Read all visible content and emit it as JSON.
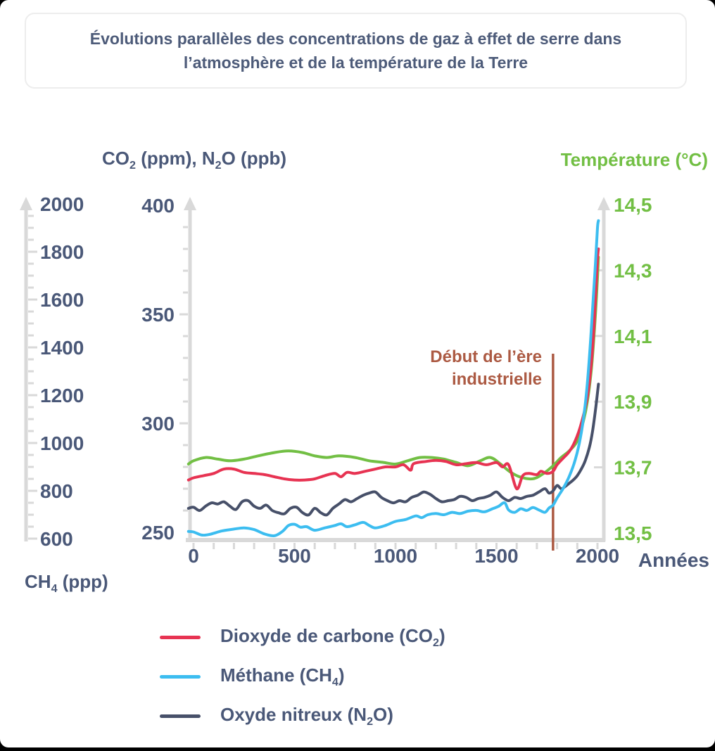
{
  "title": "Évolutions parallèles des concentrations de gaz à effet de serre dans l’atmosphère et de la température de la Terre",
  "colors": {
    "slate_text": "#4a5878",
    "axis_gray": "#d9d9d9",
    "annotation_brown": "#ac5a43",
    "temperature_green": "#72bf44",
    "co2_red": "#e73352",
    "ch4_blue": "#3cbdf0",
    "n2o_navy": "#475069"
  },
  "chart_data": {
    "type": "line",
    "title": "Évolutions parallèles des concentrations de gaz à effet de serre dans l’atmosphère et de la température de la Terre",
    "x_axis": {
      "label": "Années",
      "range": [
        0,
        2000
      ],
      "ticks": [
        0,
        500,
        1000,
        1500,
        2000
      ],
      "minor_step": 100
    },
    "axes": {
      "co2_n2o": {
        "title_segments": [
          {
            "t": "CO"
          },
          {
            "t": "2",
            "sub": true
          },
          {
            "t": " (ppm), N"
          },
          {
            "t": "2",
            "sub": true
          },
          {
            "t": "O (ppb)"
          }
        ],
        "range": [
          250,
          400
        ],
        "major_ticks": [
          250,
          300,
          350,
          400
        ],
        "minor_step": 10
      },
      "ch4": {
        "title_segments": [
          {
            "t": "CH"
          },
          {
            "t": "4",
            "sub": true
          },
          {
            "t": " (ppp)"
          }
        ],
        "range": [
          600,
          2000
        ],
        "major_ticks": [
          600,
          800,
          1000,
          1200,
          1400,
          1600,
          1800,
          2000
        ],
        "minor_step": 50
      },
      "temperature": {
        "title": "Température (°C)",
        "range": [
          13.5,
          14.5
        ],
        "ticks": [
          {
            "v": 13.5,
            "label": "13,5"
          },
          {
            "v": 13.7,
            "label": "13,7"
          },
          {
            "v": 13.9,
            "label": "13,9"
          },
          {
            "v": 14.1,
            "label": "14,1"
          },
          {
            "v": 14.3,
            "label": "14,3"
          },
          {
            "v": 14.5,
            "label": "14,5"
          }
        ],
        "tick_mark_values": [
          13.7,
          13.9,
          14.1,
          14.3
        ]
      }
    },
    "annotation": {
      "line1": "Début de l’ère",
      "line2": "industrielle",
      "year": 1780,
      "color": "#ac5a43"
    },
    "grid": false,
    "legend_position": "bottom-left",
    "series": [
      {
        "id": "temperature",
        "axis": "temperature",
        "color": "#72bf44",
        "in_legend": false,
        "name": "Température",
        "points": [
          [
            -25,
            13.71
          ],
          [
            0,
            13.72
          ],
          [
            60,
            13.73
          ],
          [
            120,
            13.725
          ],
          [
            180,
            13.72
          ],
          [
            250,
            13.725
          ],
          [
            320,
            13.735
          ],
          [
            400,
            13.745
          ],
          [
            470,
            13.75
          ],
          [
            540,
            13.745
          ],
          [
            600,
            13.735
          ],
          [
            660,
            13.73
          ],
          [
            720,
            13.735
          ],
          [
            800,
            13.73
          ],
          [
            870,
            13.72
          ],
          [
            940,
            13.715
          ],
          [
            1000,
            13.71
          ],
          [
            1060,
            13.72
          ],
          [
            1120,
            13.73
          ],
          [
            1180,
            13.73
          ],
          [
            1240,
            13.725
          ],
          [
            1300,
            13.715
          ],
          [
            1360,
            13.705
          ],
          [
            1420,
            13.72
          ],
          [
            1470,
            13.73
          ],
          [
            1520,
            13.71
          ],
          [
            1570,
            13.685
          ],
          [
            1620,
            13.67
          ],
          [
            1680,
            13.665
          ],
          [
            1730,
            13.68
          ],
          [
            1780,
            13.705
          ],
          [
            1820,
            13.73
          ],
          [
            1860,
            13.75
          ],
          [
            1900,
            13.78
          ],
          [
            1930,
            13.84
          ],
          [
            1950,
            13.9
          ],
          [
            1970,
            14.0
          ],
          [
            1985,
            14.12
          ],
          [
            1995,
            14.22
          ],
          [
            2005,
            14.34
          ]
        ]
      },
      {
        "id": "n2o",
        "axis": "co2_n2o",
        "color": "#475069",
        "in_legend": true,
        "name_segments": [
          {
            "t": "Oxyde nitreux (N"
          },
          {
            "t": "2",
            "sub": true
          },
          {
            "t": "O)"
          }
        ],
        "points": [
          [
            -25,
            261
          ],
          [
            0,
            261.5
          ],
          [
            30,
            260
          ],
          [
            60,
            262
          ],
          [
            90,
            263.5
          ],
          [
            120,
            263
          ],
          [
            150,
            264
          ],
          [
            180,
            262
          ],
          [
            210,
            260.5
          ],
          [
            240,
            264
          ],
          [
            270,
            264.5
          ],
          [
            300,
            262
          ],
          [
            330,
            261
          ],
          [
            360,
            262.5
          ],
          [
            390,
            260
          ],
          [
            420,
            259
          ],
          [
            450,
            258.5
          ],
          [
            480,
            261
          ],
          [
            510,
            261.5
          ],
          [
            540,
            259
          ],
          [
            570,
            258
          ],
          [
            600,
            261
          ],
          [
            630,
            259
          ],
          [
            660,
            258
          ],
          [
            690,
            261
          ],
          [
            720,
            263
          ],
          [
            750,
            265
          ],
          [
            780,
            264
          ],
          [
            810,
            265.5
          ],
          [
            840,
            267
          ],
          [
            870,
            268
          ],
          [
            900,
            268.5
          ],
          [
            930,
            266
          ],
          [
            960,
            264.5
          ],
          [
            990,
            263.5
          ],
          [
            1020,
            264.5
          ],
          [
            1050,
            264
          ],
          [
            1080,
            266
          ],
          [
            1110,
            267
          ],
          [
            1140,
            268.5
          ],
          [
            1170,
            267.5
          ],
          [
            1200,
            265.5
          ],
          [
            1230,
            264
          ],
          [
            1260,
            264.5
          ],
          [
            1290,
            265
          ],
          [
            1320,
            266.5
          ],
          [
            1350,
            266
          ],
          [
            1380,
            264.5
          ],
          [
            1410,
            265.5
          ],
          [
            1440,
            266
          ],
          [
            1470,
            267
          ],
          [
            1500,
            268.5
          ],
          [
            1530,
            266
          ],
          [
            1560,
            264.5
          ],
          [
            1590,
            266
          ],
          [
            1620,
            265.5
          ],
          [
            1650,
            266.5
          ],
          [
            1680,
            267
          ],
          [
            1710,
            268.5
          ],
          [
            1740,
            270
          ],
          [
            1760,
            268
          ],
          [
            1780,
            269
          ],
          [
            1800,
            271.5
          ],
          [
            1820,
            270
          ],
          [
            1840,
            271
          ],
          [
            1860,
            272.5
          ],
          [
            1880,
            274
          ],
          [
            1900,
            276
          ],
          [
            1920,
            279
          ],
          [
            1940,
            283
          ],
          [
            1960,
            289
          ],
          [
            1975,
            296
          ],
          [
            1990,
            306
          ],
          [
            2000,
            314
          ],
          [
            2005,
            318
          ]
        ]
      },
      {
        "id": "co2",
        "axis": "co2_n2o",
        "color": "#e73352",
        "in_legend": true,
        "name_segments": [
          {
            "t": "Dioxyde de carbone (CO"
          },
          {
            "t": "2",
            "sub": true
          },
          {
            "t": ")"
          }
        ],
        "points": [
          [
            -25,
            274
          ],
          [
            0,
            275
          ],
          [
            50,
            276
          ],
          [
            100,
            277
          ],
          [
            150,
            279
          ],
          [
            200,
            279
          ],
          [
            250,
            277.5
          ],
          [
            300,
            277
          ],
          [
            350,
            276.5
          ],
          [
            400,
            275.5
          ],
          [
            450,
            274.5
          ],
          [
            500,
            274
          ],
          [
            550,
            274
          ],
          [
            600,
            274.5
          ],
          [
            650,
            276
          ],
          [
            700,
            277
          ],
          [
            730,
            275.5
          ],
          [
            760,
            277.5
          ],
          [
            800,
            277
          ],
          [
            850,
            278
          ],
          [
            900,
            279
          ],
          [
            950,
            280
          ],
          [
            1000,
            280
          ],
          [
            1040,
            281
          ],
          [
            1075,
            278.5
          ],
          [
            1090,
            281.5
          ],
          [
            1150,
            282.5
          ],
          [
            1200,
            283
          ],
          [
            1250,
            282.5
          ],
          [
            1300,
            281
          ],
          [
            1350,
            281.5
          ],
          [
            1400,
            282
          ],
          [
            1450,
            281
          ],
          [
            1500,
            282
          ],
          [
            1530,
            280
          ],
          [
            1560,
            281
          ],
          [
            1600,
            270
          ],
          [
            1630,
            276
          ],
          [
            1660,
            277
          ],
          [
            1700,
            276.5
          ],
          [
            1720,
            278
          ],
          [
            1750,
            277
          ],
          [
            1780,
            278
          ],
          [
            1800,
            281
          ],
          [
            1830,
            284
          ],
          [
            1860,
            287
          ],
          [
            1890,
            292
          ],
          [
            1920,
            300
          ],
          [
            1950,
            312
          ],
          [
            1970,
            328
          ],
          [
            1985,
            348
          ],
          [
            2000,
            375
          ],
          [
            2005,
            380
          ]
        ]
      },
      {
        "id": "ch4",
        "axis": "ch4",
        "color": "#3cbdf0",
        "in_legend": true,
        "name_segments": [
          {
            "t": "Méthane (CH"
          },
          {
            "t": "4",
            "sub": true
          },
          {
            "t": ")"
          }
        ],
        "points": [
          [
            -25,
            630
          ],
          [
            0,
            628
          ],
          [
            40,
            615
          ],
          [
            80,
            618
          ],
          [
            140,
            632
          ],
          [
            200,
            640
          ],
          [
            250,
            645
          ],
          [
            300,
            638
          ],
          [
            350,
            620
          ],
          [
            400,
            612
          ],
          [
            440,
            630
          ],
          [
            470,
            655
          ],
          [
            500,
            660
          ],
          [
            530,
            648
          ],
          [
            560,
            650
          ],
          [
            600,
            635
          ],
          [
            650,
            645
          ],
          [
            700,
            655
          ],
          [
            730,
            662
          ],
          [
            760,
            650
          ],
          [
            800,
            658
          ],
          [
            840,
            668
          ],
          [
            870,
            655
          ],
          [
            900,
            645
          ],
          [
            950,
            655
          ],
          [
            1000,
            672
          ],
          [
            1050,
            680
          ],
          [
            1100,
            695
          ],
          [
            1130,
            688
          ],
          [
            1160,
            700
          ],
          [
            1200,
            705
          ],
          [
            1240,
            700
          ],
          [
            1280,
            710
          ],
          [
            1320,
            705
          ],
          [
            1360,
            715
          ],
          [
            1400,
            718
          ],
          [
            1440,
            712
          ],
          [
            1480,
            725
          ],
          [
            1510,
            735
          ],
          [
            1540,
            750
          ],
          [
            1560,
            720
          ],
          [
            1590,
            710
          ],
          [
            1620,
            725
          ],
          [
            1650,
            718
          ],
          [
            1680,
            730
          ],
          [
            1710,
            720
          ],
          [
            1740,
            710
          ],
          [
            1760,
            728
          ],
          [
            1780,
            740
          ],
          [
            1800,
            770
          ],
          [
            1830,
            810
          ],
          [
            1860,
            860
          ],
          [
            1890,
            930
          ],
          [
            1915,
            1020
          ],
          [
            1935,
            1130
          ],
          [
            1950,
            1250
          ],
          [
            1965,
            1420
          ],
          [
            1980,
            1620
          ],
          [
            1990,
            1750
          ],
          [
            2000,
            1900
          ],
          [
            2005,
            1930
          ]
        ]
      }
    ],
    "legend_order": [
      "co2",
      "ch4",
      "n2o"
    ]
  }
}
